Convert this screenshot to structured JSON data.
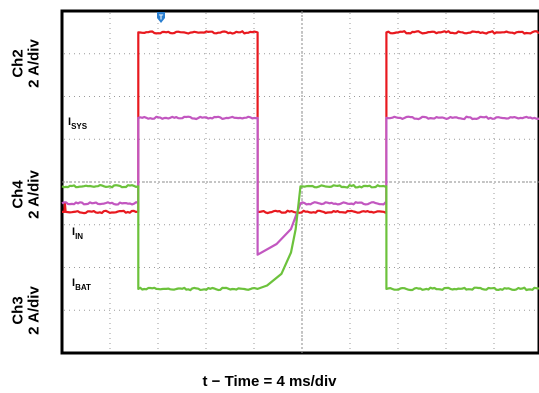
{
  "chart_data": {
    "type": "line",
    "x_divisions": 10,
    "x_label": "t − Time = 4 ms/div",
    "trigger_marker": "T",
    "grid": true,
    "channels": [
      {
        "id": "ch2",
        "axis_label_top": "Ch2",
        "axis_label_bottom": "2 A/div",
        "signal": "I",
        "signal_sub": "SYS",
        "color": "#e8191f"
      },
      {
        "id": "ch4",
        "axis_label_top": "Ch4",
        "axis_label_bottom": "2 A/div",
        "signal": "I",
        "signal_sub": "IN",
        "color": "#c257c0"
      },
      {
        "id": "ch3",
        "axis_label_top": "Ch3",
        "axis_label_bottom": "2 A/div",
        "signal": "I",
        "signal_sub": "BAT",
        "color": "#6cc23c"
      }
    ],
    "series": [
      {
        "channel": "ch2",
        "x": [
          0,
          0.1,
          0.12,
          0.15,
          0.16,
          3.2,
          3.2,
          8.2,
          8.2,
          13.6,
          13.6,
          20.0
        ],
        "y": [
          3.3,
          3.3,
          3.5,
          3.3,
          3.3,
          3.3,
          7.5,
          7.5,
          3.3,
          3.3,
          7.5,
          7.5
        ]
      },
      {
        "channel": "ch4",
        "x": [
          0,
          3.2,
          3.2,
          8.2,
          8.2,
          9.0,
          9.6,
          10.0,
          10.8,
          13.6,
          13.6,
          20.0
        ],
        "y": [
          3.5,
          3.5,
          5.5,
          5.5,
          2.3,
          2.55,
          2.9,
          3.5,
          3.5,
          3.5,
          5.5,
          5.5
        ]
      },
      {
        "channel": "ch3",
        "x": [
          0,
          3.2,
          3.2,
          8.2,
          8.6,
          9.2,
          9.6,
          9.8,
          10.0,
          10.8,
          13.6,
          13.6,
          20.0
        ],
        "y": [
          3.9,
          3.9,
          1.5,
          1.5,
          1.58,
          1.85,
          2.35,
          2.9,
          3.9,
          3.9,
          3.9,
          1.5,
          1.5
        ]
      }
    ]
  }
}
